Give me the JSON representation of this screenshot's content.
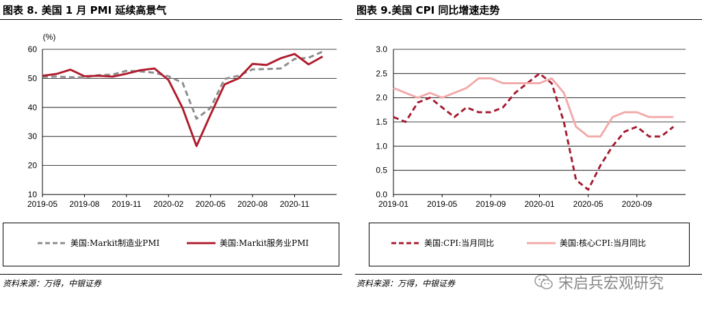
{
  "left": {
    "title": "图表 8. 美国 1 月 PMI 延续高景气",
    "source": "资料来源：万得，中银证券"
  },
  "right": {
    "title": "图表 9.美国 CPI 同比增速走势",
    "source": "资料来源：万得，中银证券"
  },
  "watermark": "宋启兵宏观研究",
  "chart_data": [
    {
      "type": "line",
      "unit": "(%)",
      "ylim": [
        10,
        60
      ],
      "yticks": [
        "60",
        "50",
        "40",
        "30",
        "20",
        "10"
      ],
      "xtick_labels": [
        "2019-05",
        "2019-08",
        "2019-11",
        "2020-02",
        "2020-05",
        "2020-08",
        "2020-11"
      ],
      "x": [
        "2019-05",
        "2019-06",
        "2019-07",
        "2019-08",
        "2019-09",
        "2019-10",
        "2019-11",
        "2019-12",
        "2020-01",
        "2020-02",
        "2020-03",
        "2020-04",
        "2020-05",
        "2020-06",
        "2020-07",
        "2020-08",
        "2020-09",
        "2020-10",
        "2020-11",
        "2020-12",
        "2021-01"
      ],
      "series": [
        {
          "name": "美国:Markit制造业PMI",
          "color": "#8c8c8c",
          "dash": true,
          "values": [
            50.5,
            50.6,
            50.4,
            50.3,
            51.1,
            51.3,
            52.6,
            52.4,
            51.9,
            50.7,
            48.5,
            36.1,
            39.8,
            49.8,
            50.9,
            53.1,
            53.2,
            53.4,
            56.7,
            57.1,
            59.2
          ]
        },
        {
          "name": "美国:Markit服务业PMI",
          "color": "#b01c2e",
          "dash": false,
          "values": [
            50.9,
            51.5,
            53.0,
            50.7,
            50.9,
            50.6,
            51.6,
            52.8,
            53.4,
            49.4,
            39.8,
            26.7,
            37.5,
            47.9,
            50.0,
            55.0,
            54.6,
            56.9,
            58.4,
            54.8,
            57.5
          ]
        }
      ],
      "grid": true,
      "legend": "bottom"
    },
    {
      "type": "line",
      "ylim": [
        0.0,
        3.0
      ],
      "yticks": [
        "3.0",
        "2.5",
        "2.0",
        "1.5",
        "1.0",
        "0.5",
        "0.0"
      ],
      "xtick_labels": [
        "2019-01",
        "2019-05",
        "2019-09",
        "2020-01",
        "2020-05",
        "2020-09"
      ],
      "x": [
        "2019-01",
        "2019-02",
        "2019-03",
        "2019-04",
        "2019-05",
        "2019-06",
        "2019-07",
        "2019-08",
        "2019-09",
        "2019-10",
        "2019-11",
        "2019-12",
        "2020-01",
        "2020-02",
        "2020-03",
        "2020-04",
        "2020-05",
        "2020-06",
        "2020-07",
        "2020-08",
        "2020-09",
        "2020-10",
        "2020-11",
        "2020-12"
      ],
      "series": [
        {
          "name": "美国:CPI:当月同比",
          "color": "#a51c30",
          "dash": true,
          "values": [
            1.6,
            1.5,
            1.9,
            2.0,
            1.8,
            1.6,
            1.8,
            1.7,
            1.7,
            1.8,
            2.1,
            2.3,
            2.5,
            2.3,
            1.5,
            0.3,
            0.1,
            0.6,
            1.0,
            1.3,
            1.4,
            1.2,
            1.2,
            1.4
          ]
        },
        {
          "name": "美国:核心CPI:当月同比",
          "color": "#f2aaaa",
          "dash": false,
          "values": [
            2.2,
            2.1,
            2.0,
            2.1,
            2.0,
            2.1,
            2.2,
            2.4,
            2.4,
            2.3,
            2.3,
            2.3,
            2.3,
            2.4,
            2.1,
            1.4,
            1.2,
            1.2,
            1.6,
            1.7,
            1.7,
            1.6,
            1.6,
            1.6
          ]
        }
      ],
      "grid": true,
      "legend": "bottom"
    }
  ]
}
